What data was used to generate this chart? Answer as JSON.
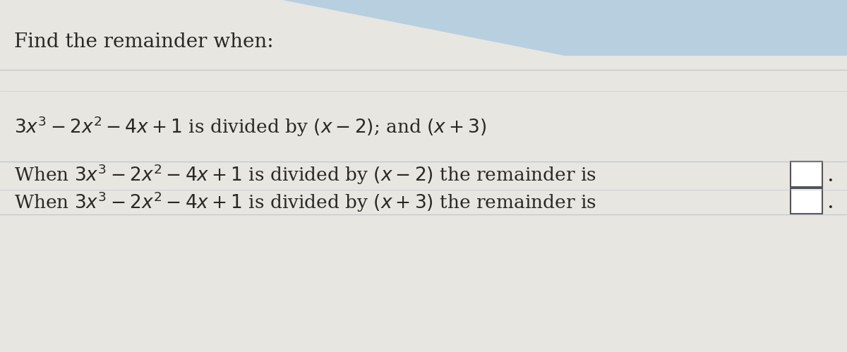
{
  "bg_color": "#e8e6e0",
  "bg_blue_color": "#b8cfe0",
  "line_color": "#a8b8c8",
  "text_color": "#2a2825",
  "title": "Find the remainder when:",
  "line1_part1": "$3x^3-2x^2-4x+1$",
  "line1_part2": " is divided by ",
  "line1_part3": "$(x-2)$",
  "line1_part4": "; and ",
  "line1_part5": "$(x+3)$",
  "line2a_pre": "When ",
  "line2a_eq": "$3x^3-2x^2-4x+1$",
  "line2a_post": " is divided by ",
  "line2a_div": "$(x-2)$",
  "line2a_end": " the remainder is",
  "line2b_pre": "When ",
  "line2b_eq": "$3x^3-2x^2-4x+1$",
  "line2b_post": " is divided by ",
  "line2b_div": "$(x+3)$",
  "line2b_end": " the remainder is",
  "title_fontsize": 20,
  "body_fontsize": 19,
  "figsize": [
    12.0,
    4.99
  ],
  "dpi": 100
}
